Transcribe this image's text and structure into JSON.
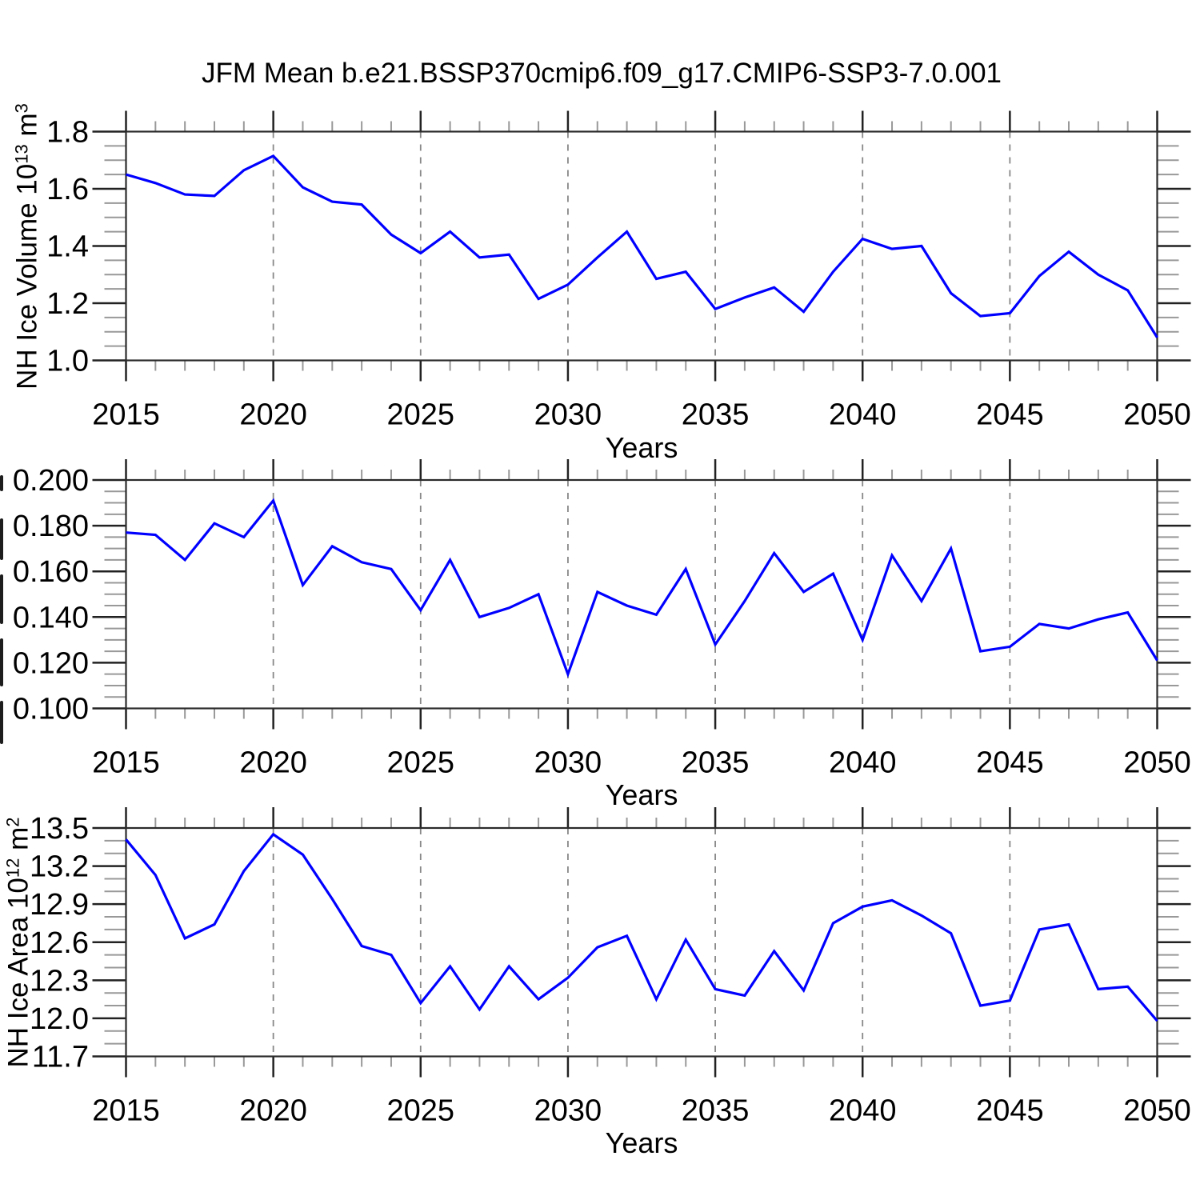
{
  "title": "JFM Mean b.e21.BSSP370cmip6.f09_g17.CMIP6-SSP3-7.0.001",
  "chart_data": {
    "type": "line",
    "line_color": "#0000ff",
    "x": {
      "label": "Years",
      "years": [
        2015,
        2016,
        2017,
        2018,
        2019,
        2020,
        2021,
        2022,
        2023,
        2024,
        2025,
        2026,
        2027,
        2028,
        2029,
        2030,
        2031,
        2032,
        2033,
        2034,
        2035,
        2036,
        2037,
        2038,
        2039,
        2040,
        2041,
        2042,
        2043,
        2044,
        2045,
        2046,
        2047,
        2048,
        2049,
        2050
      ],
      "tick_labels": [
        "2015",
        "2020",
        "2025",
        "2030",
        "2035",
        "2040",
        "2045",
        "2050"
      ],
      "tick_values": [
        2015,
        2020,
        2025,
        2030,
        2035,
        2040,
        2045,
        2050
      ],
      "minor_step": 1,
      "gridline_years": [
        2020,
        2025,
        2030,
        2035,
        2040,
        2045
      ],
      "grid_style": "dashed-vertical"
    },
    "panels": [
      {
        "name": "nh-ice-volume",
        "ylabel_segments": [
          {
            "text": "NH Ice Volume 10"
          },
          {
            "text": "13",
            "sup": true
          },
          {
            "text": " m"
          },
          {
            "text": "3",
            "sup": true
          }
        ],
        "ylabel_clipped": false,
        "ylim": [
          1.0,
          1.8
        ],
        "ytick_values": [
          1.0,
          1.2,
          1.4,
          1.6,
          1.8
        ],
        "ytick_labels": [
          "1.0",
          "1.2",
          "1.4",
          "1.6",
          "1.8"
        ],
        "y_minor_step": 0.05,
        "values": [
          1.65,
          1.62,
          1.58,
          1.575,
          1.665,
          1.715,
          1.605,
          1.555,
          1.545,
          1.44,
          1.375,
          1.45,
          1.36,
          1.37,
          1.215,
          1.265,
          1.36,
          1.45,
          1.285,
          1.31,
          1.18,
          1.22,
          1.255,
          1.17,
          1.31,
          1.425,
          1.39,
          1.4,
          1.235,
          1.155,
          1.165,
          1.295,
          1.38,
          1.3,
          1.245,
          1.08
        ]
      },
      {
        "name": "middle-panel-ylabel-clipped-offscreen",
        "ylabel_segments": [],
        "ylabel_clipped": true,
        "ylim": [
          0.1,
          0.2
        ],
        "ytick_values": [
          0.1,
          0.12,
          0.14,
          0.16,
          0.18,
          0.2
        ],
        "ytick_labels": [
          "0.100",
          "0.120",
          "0.140",
          "0.160",
          "0.180",
          "0.200"
        ],
        "y_minor_step": 0.005,
        "values": [
          0.177,
          0.176,
          0.165,
          0.181,
          0.175,
          0.191,
          0.154,
          0.171,
          0.164,
          0.161,
          0.143,
          0.165,
          0.14,
          0.144,
          0.15,
          0.115,
          0.151,
          0.145,
          0.141,
          0.161,
          0.128,
          0.147,
          0.168,
          0.151,
          0.159,
          0.13,
          0.167,
          0.147,
          0.17,
          0.125,
          0.127,
          0.137,
          0.135,
          0.139,
          0.142,
          0.121
        ]
      },
      {
        "name": "nh-ice-area",
        "ylabel_segments": [
          {
            "text": "NH Ice Area 10"
          },
          {
            "text": "12",
            "sup": true
          },
          {
            "text": " m"
          },
          {
            "text": "2",
            "sup": true
          }
        ],
        "ylabel_clipped": false,
        "ylim": [
          11.7,
          13.5
        ],
        "ytick_values": [
          11.7,
          12.0,
          12.3,
          12.6,
          12.9,
          13.2,
          13.5
        ],
        "ytick_labels": [
          "11.7",
          "12.0",
          "12.3",
          "12.6",
          "12.9",
          "13.2",
          "13.5"
        ],
        "y_minor_step": 0.1,
        "values": [
          13.41,
          13.13,
          12.63,
          12.74,
          13.16,
          13.45,
          13.29,
          12.94,
          12.57,
          12.5,
          12.12,
          12.41,
          12.07,
          12.41,
          12.15,
          12.32,
          12.56,
          12.65,
          12.15,
          12.62,
          12.23,
          12.18,
          12.53,
          12.22,
          12.75,
          12.88,
          12.93,
          12.81,
          12.67,
          12.1,
          12.14,
          12.7,
          12.74,
          12.23,
          12.25,
          11.98
        ]
      }
    ]
  }
}
